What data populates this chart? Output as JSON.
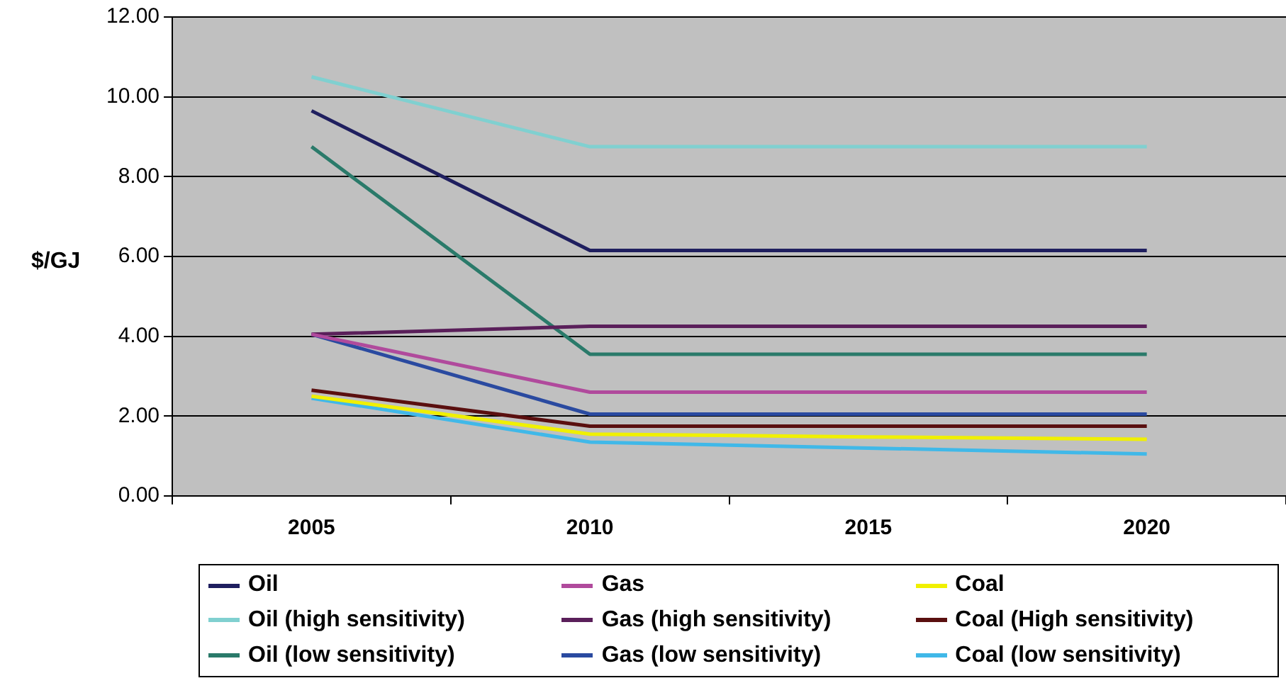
{
  "chart_data": {
    "type": "line",
    "ylabel": "$/GJ",
    "categories": [
      "2005",
      "2010",
      "2015",
      "2020"
    ],
    "ylim": [
      0,
      12
    ],
    "yticks": [
      {
        "value": 0,
        "label": "0.00"
      },
      {
        "value": 2,
        "label": "2.00"
      },
      {
        "value": 4,
        "label": "4.00"
      },
      {
        "value": 6,
        "label": "6.00"
      },
      {
        "value": 8,
        "label": "8.00"
      },
      {
        "value": 10,
        "label": "10.00"
      },
      {
        "value": 12,
        "label": "12.00"
      }
    ],
    "grid": "y",
    "legend": "bottom",
    "marker": "none",
    "line_style": "solid",
    "series": [
      {
        "name": "Oil",
        "color": "#1f1f5f",
        "values": [
          9.65,
          6.15,
          6.15,
          6.15
        ]
      },
      {
        "name": "Gas",
        "color": "#b04a9c",
        "values": [
          4.05,
          2.6,
          2.6,
          2.6
        ]
      },
      {
        "name": "Coal",
        "color": "#f0f000",
        "values": [
          2.5,
          1.55,
          1.48,
          1.42
        ]
      },
      {
        "name": "Oil (high sensitivity)",
        "color": "#80d0d0",
        "values": [
          10.5,
          8.75,
          8.75,
          8.75
        ]
      },
      {
        "name": "Gas (high sensitivity)",
        "color": "#5a1f5a",
        "values": [
          4.05,
          4.25,
          4.25,
          4.25
        ]
      },
      {
        "name": "Coal (High sensitivity)",
        "color": "#5a0f0f",
        "values": [
          2.65,
          1.75,
          1.75,
          1.75
        ]
      },
      {
        "name": "Oil (low sensitivity)",
        "color": "#2a7a6a",
        "values": [
          8.75,
          3.55,
          3.55,
          3.55
        ]
      },
      {
        "name": "Gas (low sensitivity)",
        "color": "#2a4aa0",
        "values": [
          4.05,
          2.05,
          2.05,
          2.05
        ]
      },
      {
        "name": "Coal (low sensitivity)",
        "color": "#40b8e8",
        "values": [
          2.45,
          1.35,
          1.2,
          1.05
        ]
      }
    ]
  }
}
